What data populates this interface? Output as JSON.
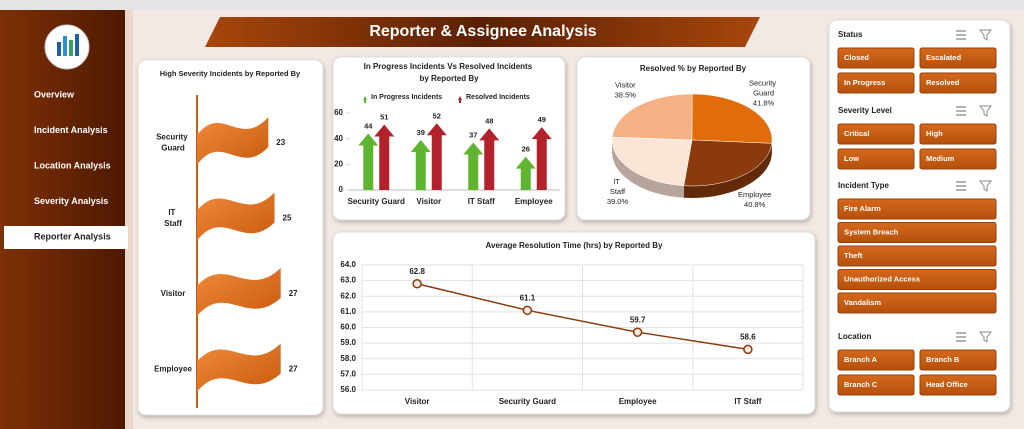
{
  "title": "Reporter & Assignee Analysis",
  "nav": [
    "Overview",
    "Incident Analysis",
    "Location Analysis",
    "Severity Analysis",
    "Reporter Analysis"
  ],
  "active_nav": 4,
  "slicers": [
    {
      "title": "Status",
      "columns": 2,
      "items": [
        "Closed",
        "Escalated",
        "In Progress",
        "Resolved"
      ]
    },
    {
      "title": "Severity Level",
      "columns": 2,
      "items": [
        "Critical",
        "High",
        "Low",
        "Medium"
      ]
    },
    {
      "title": "Incident Type",
      "columns": 1,
      "items": [
        "Fire Alarm",
        "System Breach",
        "Theft",
        "Unauthorized Access",
        "Vandalism"
      ]
    },
    {
      "title": "Location",
      "columns": 2,
      "items": [
        "Branch A",
        "Branch B",
        "Branch C",
        "Head Office"
      ]
    }
  ],
  "chart_data": [
    {
      "type": "flag",
      "title": "High Severity Incidents by Reported By",
      "categories": [
        "Security Guard",
        "IT Staff",
        "Visitor",
        "Employee"
      ],
      "values": [
        23,
        25,
        27,
        27
      ],
      "color": "#e36c0a"
    },
    {
      "type": "arrow-bar",
      "title": "In Progress Incidents Vs Resolved Incidents by Reported By",
      "categories": [
        "Security Guard",
        "Visitor",
        "IT Staff",
        "Employee"
      ],
      "series": [
        {
          "name": "In Progress  Incidents",
          "color": "#5fb52f",
          "values": [
            44,
            39,
            37,
            26
          ]
        },
        {
          "name": "Resolved Incidents",
          "color": "#b3222a",
          "values": [
            51,
            52,
            48,
            49
          ]
        }
      ],
      "ylim": [
        0,
        60
      ],
      "yticks": [
        0,
        20,
        40,
        60
      ],
      "grid": false
    },
    {
      "type": "pie",
      "title": "Resolved % by Reported By",
      "categories": [
        "Visitor",
        "Security Guard",
        "Employee",
        "IT Staff"
      ],
      "values": [
        38.5,
        41.8,
        40.8,
        39.0
      ],
      "value_labels": [
        "38.5%",
        "41.8%",
        "40.8%",
        "39.0%"
      ],
      "colors": [
        "#f4b183",
        "#e36c0a",
        "#8a3a0c",
        "#fbe5d6"
      ]
    },
    {
      "type": "line",
      "title": "Average Resolution Time (hrs) by Reported By",
      "categories": [
        "Visitor",
        "Security Guard",
        "Employee",
        "IT Staff"
      ],
      "values": [
        62.8,
        61.1,
        59.7,
        58.6
      ],
      "color": "#8a3a0c",
      "ylim": [
        56,
        64
      ],
      "yticks": [
        {
          "value": 56,
          "label": "56.0"
        },
        {
          "value": 57,
          "label": "57.0"
        },
        {
          "value": 58,
          "label": "58.0"
        },
        {
          "value": 59,
          "label": "59.0"
        },
        {
          "value": 60,
          "label": "60.0"
        },
        {
          "value": 61,
          "label": "61.0"
        },
        {
          "value": 62,
          "label": "62.0"
        },
        {
          "value": 63,
          "label": "63.0"
        },
        {
          "value": 64,
          "label": "64.0"
        }
      ],
      "grid": true
    }
  ]
}
